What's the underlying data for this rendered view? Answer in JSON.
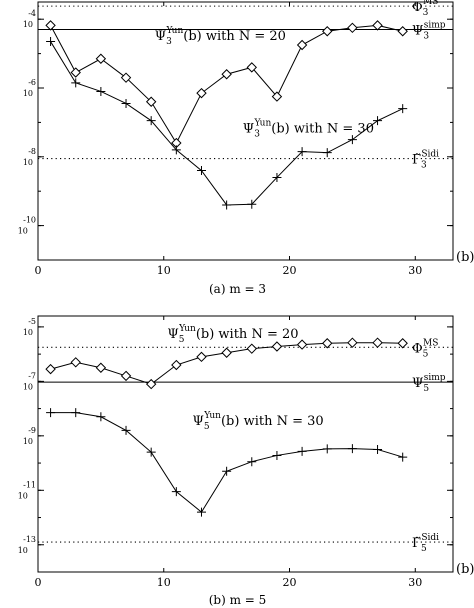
{
  "chart_data": [
    {
      "type": "line",
      "panel_id": "a",
      "caption": "(a) m = 3",
      "xlabel": "(b)",
      "xlim": [
        0,
        33
      ],
      "ylim_log10": [
        -11,
        -3.5
      ],
      "yscale": "log",
      "x_ticks": [
        0,
        10,
        20,
        30
      ],
      "y_ticks": [
        {
          "exp": -4,
          "label": "10^-4"
        },
        {
          "exp": -6,
          "label": "10^-6"
        },
        {
          "exp": -8,
          "label": "10^-8"
        },
        {
          "exp": -10,
          "label": "10^-10"
        }
      ],
      "series": [
        {
          "label": "Ψ3^Yun(b) with N = 20",
          "marker": "diamond",
          "x": [
            1,
            3,
            5,
            7,
            9,
            11,
            13,
            15,
            17,
            19,
            21,
            23,
            25,
            27,
            29
          ],
          "log10y": [
            -4.18,
            -5.55,
            -5.15,
            -5.7,
            -6.4,
            -7.6,
            -6.15,
            -5.6,
            -5.4,
            -6.25,
            -4.75,
            -4.35,
            -4.25,
            -4.18,
            -4.35
          ]
        },
        {
          "label": "Ψ3^Yun(b) with N = 30",
          "marker": "plus",
          "x": [
            1,
            3,
            5,
            7,
            9,
            11,
            13,
            15,
            17,
            19,
            21,
            23,
            25,
            27,
            29
          ],
          "log10y": [
            -4.65,
            -5.85,
            -6.1,
            -6.45,
            -6.95,
            -7.8,
            -8.4,
            -9.4,
            -9.38,
            -8.6,
            -7.85,
            -7.88,
            -7.5,
            -6.95,
            -6.6
          ]
        }
      ],
      "reference_lines": [
        {
          "label": "Φ3^MS",
          "log10y": -3.62,
          "style": "dotted"
        },
        {
          "label": "Ψ3^simp",
          "log10y": -4.3,
          "style": "solid"
        },
        {
          "label": "Γ̃3^Sidi",
          "log10y": -8.05,
          "style": "dotted"
        }
      ],
      "annotations": [
        {
          "text": "Ψ3^Yun(b) with N = 20",
          "x": 14.5,
          "log10y": -4.6
        },
        {
          "text": "Ψ3^Yun(b) with N = 30",
          "x": 21.5,
          "log10y": -7.3
        }
      ]
    },
    {
      "type": "line",
      "panel_id": "b",
      "caption": "(b) m = 5",
      "xlabel": "(b)",
      "xlim": [
        0,
        33
      ],
      "ylim_log10": [
        -14,
        -4.6
      ],
      "yscale": "log",
      "x_ticks": [
        0,
        10,
        20,
        30
      ],
      "y_ticks": [
        {
          "exp": -5,
          "label": "10^-5"
        },
        {
          "exp": -7,
          "label": "10^-7"
        },
        {
          "exp": -9,
          "label": "10^-9"
        },
        {
          "exp": -11,
          "label": "10^-11"
        },
        {
          "exp": -13,
          "label": "10^-13"
        }
      ],
      "series": [
        {
          "label": "Ψ5^Yun(b) with N = 20",
          "marker": "diamond",
          "x": [
            1,
            3,
            5,
            7,
            9,
            11,
            13,
            15,
            17,
            19,
            21,
            23,
            25,
            27,
            29
          ],
          "log10y": [
            -6.55,
            -6.3,
            -6.5,
            -6.8,
            -7.1,
            -6.4,
            -6.1,
            -5.95,
            -5.8,
            -5.72,
            -5.65,
            -5.6,
            -5.58,
            -5.58,
            -5.6
          ]
        },
        {
          "label": "Ψ5^Yun(b) with N = 30",
          "marker": "plus",
          "x": [
            1,
            3,
            5,
            7,
            9,
            11,
            13,
            15,
            17,
            19,
            21,
            23,
            25,
            27,
            29
          ],
          "log10y": [
            -8.15,
            -8.15,
            -8.3,
            -8.8,
            -9.6,
            -11.05,
            -11.8,
            -10.3,
            -9.95,
            -9.72,
            -9.57,
            -9.48,
            -9.47,
            -9.5,
            -9.78
          ]
        }
      ],
      "reference_lines": [
        {
          "label": "Φ5^MS",
          "log10y": -5.75,
          "style": "dotted"
        },
        {
          "label": "Ψ5^simp",
          "log10y": -7.03,
          "style": "solid"
        },
        {
          "label": "Γ̃5^Sidi",
          "log10y": -12.9,
          "style": "dotted"
        }
      ],
      "annotations": [
        {
          "text": "Ψ5^Yun(b) with N = 20",
          "x": 15.5,
          "log10y": -5.4
        },
        {
          "text": "Ψ5^Yun(b) with N = 30",
          "x": 17.5,
          "log10y": -8.6
        }
      ]
    }
  ]
}
